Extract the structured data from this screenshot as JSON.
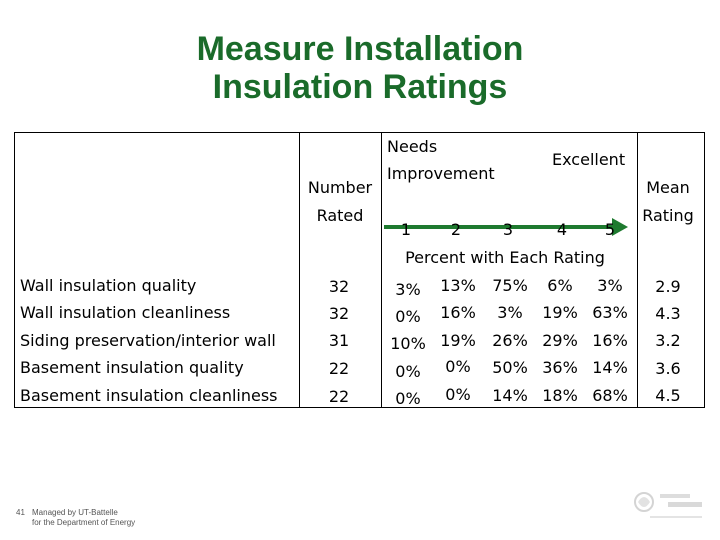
{
  "title": {
    "line1": "Measure Installation",
    "line2": "Insulation Ratings"
  },
  "header": {
    "number_rated": [
      "Number",
      "Rated"
    ],
    "needs_improvement": [
      "Needs",
      "Improvement"
    ],
    "excellent": "Excellent",
    "mean_rating": [
      "Mean",
      "Rating"
    ],
    "rating_scale": [
      "1",
      "2",
      "3",
      "4",
      "5"
    ],
    "percent_caption": "Percent with Each Rating"
  },
  "rows": [
    {
      "label": "Wall insulation quality",
      "number": "32",
      "pcts": [
        "3%",
        "13%",
        "75%",
        "6%",
        "3%"
      ],
      "mean": "2.9"
    },
    {
      "label": "Wall insulation cleanliness",
      "number": "32",
      "pcts": [
        "0%",
        "16%",
        "3%",
        "19%",
        "63%"
      ],
      "mean": "4.3"
    },
    {
      "label": "Siding preservation/interior wall",
      "number": "31",
      "pcts": [
        "10%",
        "19%",
        "26%",
        "29%",
        "16%"
      ],
      "mean": "3.2"
    },
    {
      "label": "Basement insulation quality",
      "number": "22",
      "pcts": [
        "0%",
        "0%",
        "50%",
        "36%",
        "14%"
      ],
      "mean": "3.6"
    },
    {
      "label": "Basement insulation cleanliness",
      "number": "22",
      "pcts": [
        "0%",
        "0%",
        "14%",
        "18%",
        "68%"
      ],
      "mean": "4.5"
    }
  ],
  "footer": {
    "slide_number": "41",
    "line1": "Managed by UT-Battelle",
    "line2": "for the Department of Energy"
  },
  "colors": {
    "title": "#1a6b2a",
    "arrow": "#1e7a2f"
  },
  "icons": {
    "logo": "oak-ridge-logo"
  }
}
